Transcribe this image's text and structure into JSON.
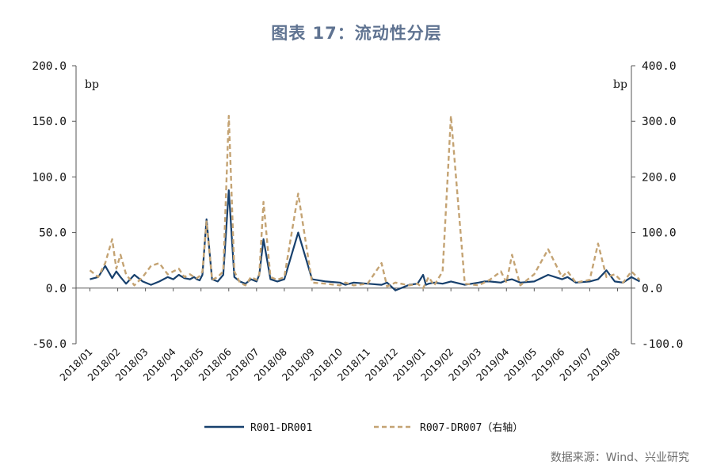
{
  "title": "图表 17：流动性分层",
  "source": "数据来源：Wind、兴业研究",
  "colors": {
    "left_series": "#17406d",
    "right_series": "#c4a373",
    "axis": "#555555",
    "title": "#5f7391"
  },
  "chart_data": {
    "type": "line",
    "left_axis": {
      "unit": "bp",
      "ylim": [
        -50,
        200
      ],
      "ticks": [
        -50,
        0,
        50,
        100,
        150,
        200
      ],
      "tick_labels": [
        "-50.0",
        "0.0",
        "50.0",
        "100.0",
        "150.0",
        "200.0"
      ]
    },
    "right_axis": {
      "unit": "bp",
      "ylim": [
        -100,
        400
      ],
      "ticks": [
        -100,
        0,
        100,
        200,
        300,
        400
      ],
      "tick_labels": [
        "-100.0",
        "0.0",
        "100.0",
        "200.0",
        "300.0",
        "400.0"
      ]
    },
    "x_tick_labels": [
      "2018/01",
      "2018/02",
      "2018/03",
      "2018/04",
      "2018/05",
      "2018/06",
      "2018/07",
      "2018/08",
      "2018/09",
      "2018/10",
      "2018/11",
      "2018/12",
      "2019/01",
      "2019/02",
      "2019/03",
      "2019/04",
      "2019/05",
      "2019/06",
      "2019/07",
      "2019/08"
    ],
    "x": [
      0,
      0.3,
      0.55,
      0.8,
      0.95,
      1.1,
      1.3,
      1.6,
      1.9,
      2.2,
      2.5,
      2.8,
      3.0,
      3.2,
      3.4,
      3.6,
      3.75,
      3.85,
      3.95,
      4.05,
      4.2,
      4.4,
      4.6,
      4.8,
      5.0,
      5.2,
      5.4,
      5.6,
      5.8,
      6.0,
      6.1,
      6.25,
      6.5,
      6.75,
      7.0,
      7.5,
      8.0,
      8.5,
      9.0,
      9.2,
      9.5,
      10.0,
      10.5,
      10.7,
      11.0,
      11.5,
      11.8,
      12.0,
      12.1,
      12.2,
      12.4,
      12.7,
      13.0,
      13.5,
      14.0,
      14.2,
      14.4,
      14.8,
      15.0,
      15.2,
      15.5,
      16.0,
      16.5,
      17.0,
      17.2,
      17.5,
      18.0,
      18.3,
      18.6,
      18.9,
      19.2,
      19.5,
      19.8
    ],
    "series": [
      {
        "name": "R001-DR001",
        "axis": "left",
        "style": "solid",
        "values": [
          8,
          10,
          20,
          9,
          15,
          10,
          4,
          12,
          6,
          3,
          6,
          10,
          8,
          12,
          9,
          8,
          10,
          8,
          7,
          12,
          62,
          8,
          6,
          12,
          88,
          10,
          6,
          4,
          8,
          6,
          12,
          44,
          8,
          6,
          8,
          50,
          8,
          6,
          5,
          3,
          5,
          4,
          3,
          5,
          -2,
          3,
          4,
          12,
          3,
          4,
          5,
          4,
          6,
          3,
          5,
          6,
          6,
          5,
          7,
          8,
          5,
          6,
          12,
          8,
          10,
          5,
          6,
          8,
          16,
          6,
          5,
          10,
          6
        ]
      },
      {
        "name": "R007-DR007（右轴）",
        "axis": "right",
        "style": "dashed",
        "values": [
          32,
          20,
          45,
          88,
          35,
          60,
          25,
          5,
          20,
          40,
          45,
          25,
          30,
          35,
          20,
          25,
          20,
          18,
          22,
          30,
          120,
          15,
          20,
          30,
          310,
          30,
          10,
          5,
          20,
          15,
          25,
          155,
          20,
          15,
          20,
          170,
          10,
          8,
          5,
          10,
          5,
          8,
          45,
          3,
          10,
          5,
          8,
          0,
          10,
          20,
          5,
          30,
          310,
          8,
          5,
          10,
          15,
          30,
          10,
          60,
          5,
          25,
          70,
          20,
          30,
          10,
          15,
          80,
          20,
          25,
          10,
          30,
          15
        ]
      }
    ]
  }
}
